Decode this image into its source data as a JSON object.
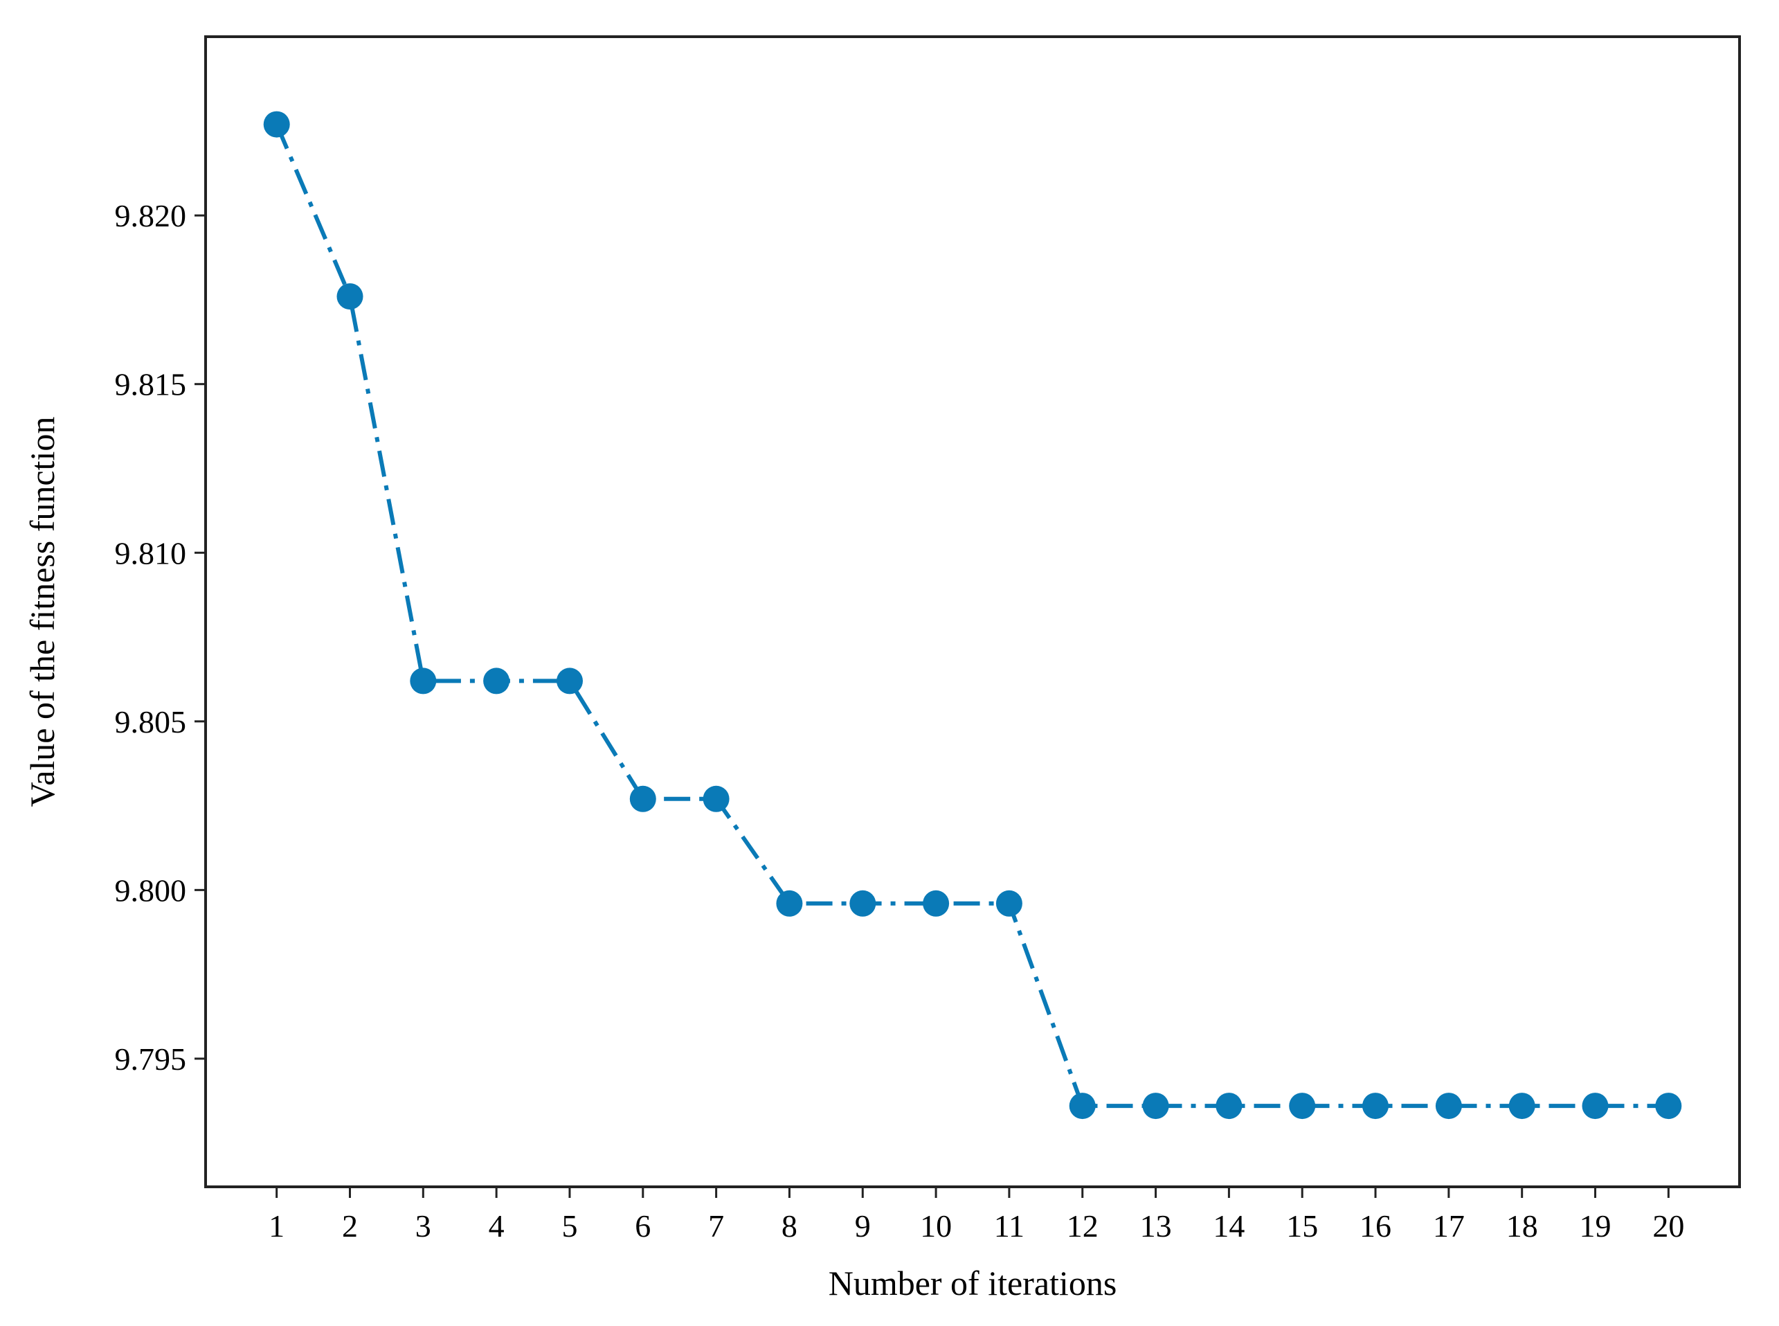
{
  "chart_data": {
    "type": "line",
    "title": "",
    "xlabel": "Number of iterations",
    "ylabel": "Value of the fitness function",
    "x": [
      1,
      2,
      3,
      4,
      5,
      6,
      7,
      8,
      9,
      10,
      11,
      12,
      13,
      14,
      15,
      16,
      17,
      18,
      19,
      20
    ],
    "x_ticks": [
      "1",
      "2",
      "3",
      "4",
      "5",
      "6",
      "7",
      "8",
      "9",
      "10",
      "11",
      "12",
      "13",
      "14",
      "15",
      "16",
      "17",
      "18",
      "19",
      "20"
    ],
    "y_ticks": [
      "9.795",
      "9.800",
      "9.805",
      "9.810",
      "9.815",
      "9.820"
    ],
    "y_tick_values": [
      9.795,
      9.8,
      9.805,
      9.81,
      9.815,
      9.82
    ],
    "xlim": [
      0.03,
      20.97
    ],
    "ylim": [
      9.7912,
      9.8253
    ],
    "grid": false,
    "legend": "none",
    "series": [
      {
        "color": "#0a7ab7",
        "line_style": "dash-dot",
        "marker": "circle",
        "values": [
          9.8227,
          9.8176,
          9.8062,
          9.8062,
          9.8062,
          9.8027,
          9.8027,
          9.7996,
          9.7996,
          9.7996,
          9.7996,
          9.7936,
          9.7936,
          9.7936,
          9.7936,
          9.7936,
          9.7936,
          9.7936,
          9.7936,
          9.7936
        ]
      }
    ]
  }
}
